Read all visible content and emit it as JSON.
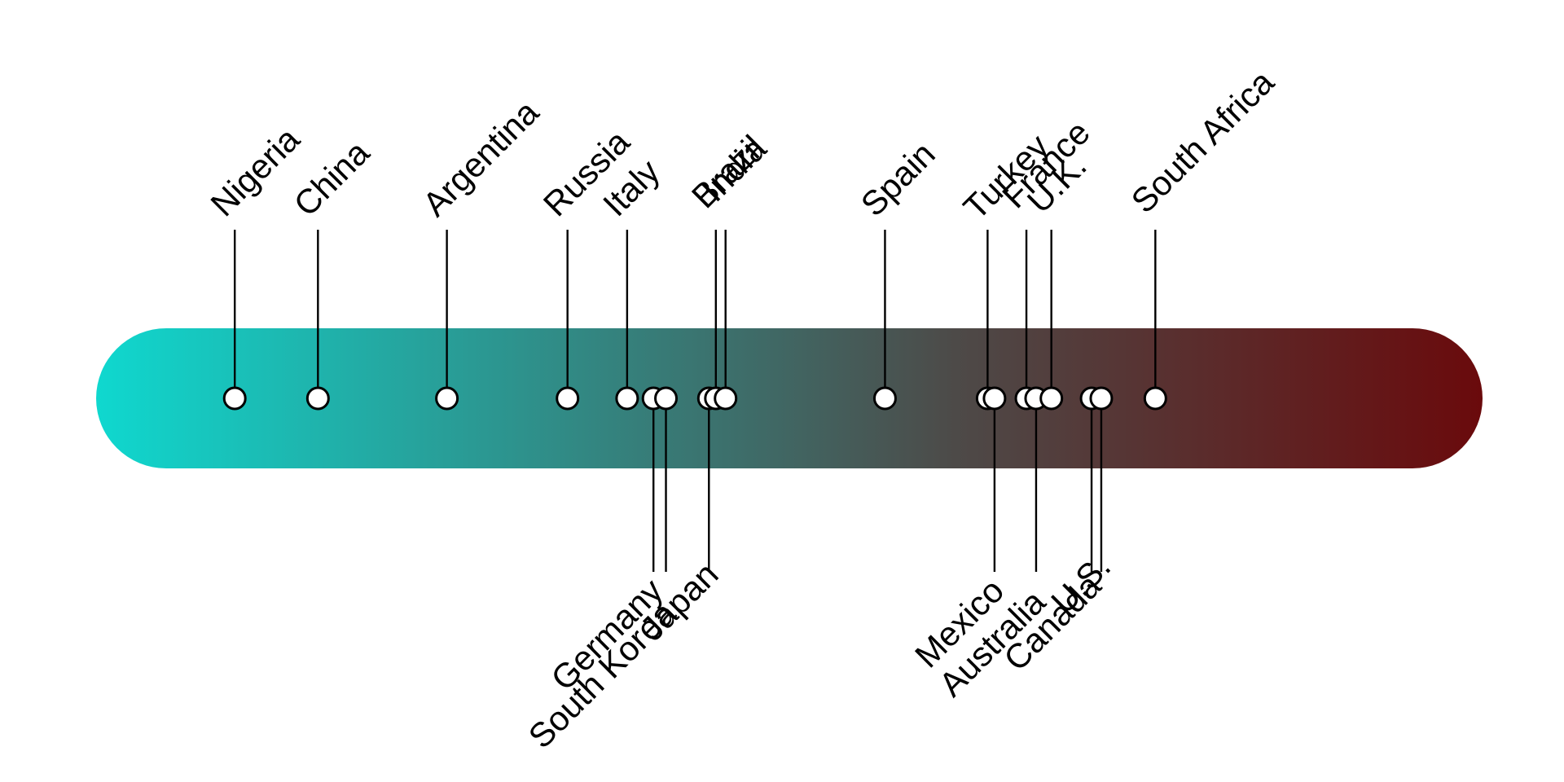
{
  "chart_data": {
    "type": "scatter",
    "colors": {
      "low": "#0fd8cf",
      "mid": "#4d4a48",
      "high": "#6a0a0c"
    },
    "points": [
      {
        "label": "Nigeria",
        "position": 10,
        "side": "above"
      },
      {
        "label": "China",
        "position": 16,
        "side": "above"
      },
      {
        "label": "Argentina",
        "position": 25.3,
        "side": "above"
      },
      {
        "label": "Russia",
        "position": 34,
        "side": "above"
      },
      {
        "label": "Italy",
        "position": 38.3,
        "side": "above"
      },
      {
        "label": "Germany",
        "position": 40.2,
        "side": "below"
      },
      {
        "label": "South Korea",
        "position": 41.1,
        "side": "below"
      },
      {
        "label": "Japan",
        "position": 44.2,
        "side": "below"
      },
      {
        "label": "Brazil",
        "position": 44.7,
        "side": "above"
      },
      {
        "label": "India",
        "position": 45.4,
        "side": "above"
      },
      {
        "label": "Spain",
        "position": 56.9,
        "side": "above"
      },
      {
        "label": "Turkey",
        "position": 64.3,
        "side": "above"
      },
      {
        "label": "Mexico",
        "position": 64.8,
        "side": "below"
      },
      {
        "label": "France",
        "position": 67.1,
        "side": "above"
      },
      {
        "label": "Australia",
        "position": 67.8,
        "side": "below"
      },
      {
        "label": "U.K.",
        "position": 68.9,
        "side": "above"
      },
      {
        "label": "Canada",
        "position": 71.8,
        "side": "below"
      },
      {
        "label": "U.S.",
        "position": 72.5,
        "side": "below"
      },
      {
        "label": "South Africa",
        "position": 76.4,
        "side": "above"
      }
    ]
  }
}
